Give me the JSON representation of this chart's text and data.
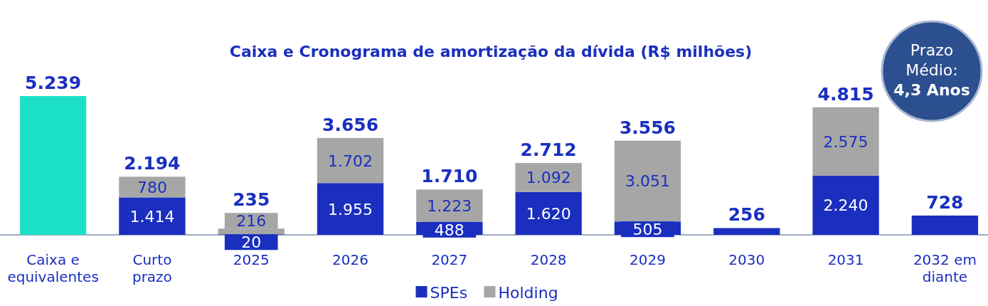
{
  "chart_data": {
    "type": "bar",
    "stacked": true,
    "title": "Caixa e Cronograma de amortização da dívida (R$ milhões)",
    "categories": [
      "Caixa e equivalentes",
      "Curto prazo",
      "2025",
      "2026",
      "2027",
      "2028",
      "2029",
      "2030",
      "2031",
      "2032 em diante"
    ],
    "series": [
      {
        "color": "#1de0c8",
        "values": [
          5239,
          null,
          null,
          null,
          null,
          null,
          null,
          null,
          null,
          null
        ]
      },
      {
        "name": "SPEs",
        "color": "#1a2fbf",
        "values": [
          null,
          1414,
          20,
          1955,
          488,
          1620,
          505,
          256,
          2240,
          728
        ],
        "value_labels": [
          null,
          "1.414",
          "20",
          "1.955",
          "488",
          "1.620",
          "505",
          null,
          "2.240",
          null
        ]
      },
      {
        "name": "Holding",
        "color": "#a6a6a6",
        "values": [
          null,
          780,
          216,
          1702,
          1223,
          1092,
          3051,
          null,
          2575,
          null
        ],
        "value_labels": [
          null,
          "780",
          "216",
          "1.702",
          "1.223",
          "1.092",
          "3.051",
          null,
          "2.575",
          null
        ]
      }
    ],
    "totals": [
      "5.239",
      "2.194",
      "235",
      "3.656",
      "1.710",
      "2.712",
      "3.556",
      "256",
      "4.815",
      "728"
    ],
    "legend": "bottom",
    "annotations": [
      "Prazo\nMédio:\n4,3 Anos"
    ]
  }
}
